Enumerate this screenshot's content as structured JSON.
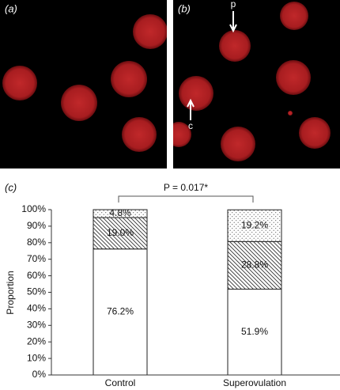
{
  "panels": {
    "a": {
      "label": "(a)"
    },
    "b": {
      "label": "(b)",
      "annotations": [
        "p",
        "c"
      ]
    },
    "c": {
      "label": "(c)"
    }
  },
  "chart_data": {
    "type": "stacked_bar",
    "ylabel": "Proportion",
    "annotation": "P = 0.017*",
    "categories": [
      "Control",
      "Superovulation"
    ],
    "series": [
      {
        "values": [
          76.2,
          51.9
        ],
        "value_labels": [
          "76.2%",
          "51.9%"
        ]
      },
      {
        "values": [
          19.0,
          28.8
        ],
        "value_labels": [
          "19.0%",
          "28.8%"
        ]
      },
      {
        "values": [
          4.8,
          19.2
        ],
        "value_labels": [
          "4.8%",
          "19.2%"
        ]
      }
    ],
    "ylim": [
      0,
      100
    ],
    "yticks": [
      {
        "value": 0,
        "label": "0%"
      },
      {
        "value": 10,
        "label": "10%"
      },
      {
        "value": 20,
        "label": "20%"
      },
      {
        "value": 30,
        "label": "30%"
      },
      {
        "value": 40,
        "label": "40%"
      },
      {
        "value": 50,
        "label": "50%"
      },
      {
        "value": 60,
        "label": "60%"
      },
      {
        "value": 70,
        "label": "70%"
      },
      {
        "value": 80,
        "label": "80%"
      },
      {
        "value": 90,
        "label": "90%"
      },
      {
        "value": 100,
        "label": "100%"
      }
    ]
  }
}
